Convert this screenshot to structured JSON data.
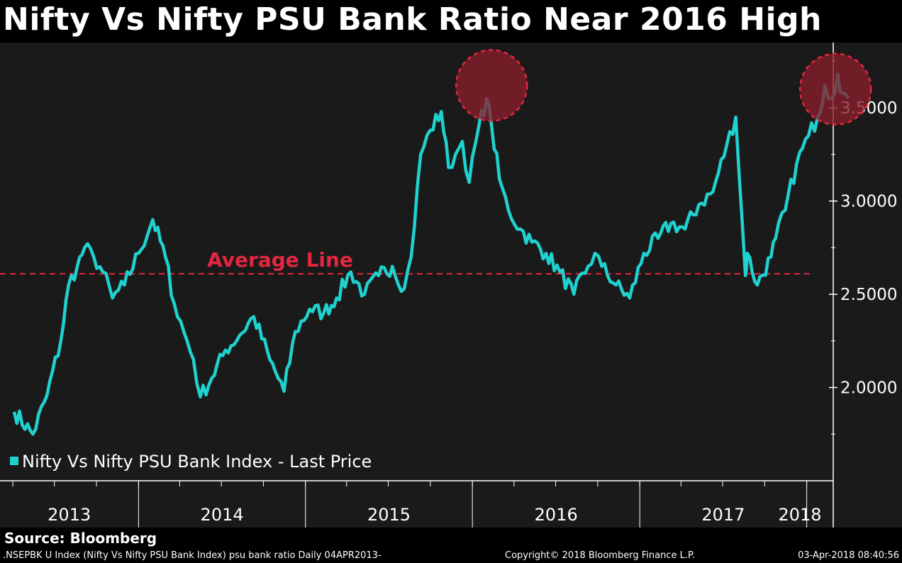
{
  "title": "Nifty Vs Nifty PSU Bank Ratio Near 2016 High",
  "source": "Source: Bloomberg",
  "footer": {
    "left": ".NSEPBK U Index (Nifty Vs Nifty PSU Bank Index) psu bank ratio  Daily 04APR2013-",
    "center": "Copyright© 2018 Bloomberg Finance L.P.",
    "right": "03-Apr-2018 08:40:56"
  },
  "colors": {
    "background": "#1a1a1a",
    "series": "#1fd1cf",
    "average_line": "#e4263f",
    "highlight_fill": "#8b1f2c",
    "highlight_stroke": "#e4263f",
    "axis": "#ffffff",
    "text": "#ffffff"
  },
  "chart_data": {
    "type": "line",
    "title": "Nifty Vs Nifty PSU Bank Ratio Near 2016 High",
    "xlabel": "",
    "ylabel": "",
    "x_ticks": [
      "2013",
      "2014",
      "2015",
      "2016",
      "2017",
      "2018"
    ],
    "y_ticks": [
      "2.0000",
      "2.5000",
      "3.0000",
      "3.5000"
    ],
    "ylim": [
      1.5,
      3.85
    ],
    "grid": false,
    "legend_position": "bottom-left",
    "series": [
      {
        "name": "Nifty Vs Nifty PSU Bank Index - Last Price",
        "x": [
          "2013-04-04",
          "2013-05-15",
          "2013-06-15",
          "2013-07-15",
          "2013-08-01",
          "2013-08-20",
          "2013-09-05",
          "2013-09-25",
          "2013-10-15",
          "2013-11-05",
          "2013-12-01",
          "2014-01-01",
          "2014-02-01",
          "2014-03-01",
          "2014-03-20",
          "2014-04-10",
          "2014-05-01",
          "2014-05-16",
          "2014-06-10",
          "2014-07-10",
          "2014-08-10",
          "2014-09-10",
          "2014-10-15",
          "2014-11-15",
          "2014-12-10",
          "2015-01-10",
          "2015-02-10",
          "2015-03-10",
          "2015-04-10",
          "2015-05-10",
          "2015-06-10",
          "2015-07-10",
          "2015-08-05",
          "2015-08-20",
          "2015-09-10",
          "2015-10-01",
          "2015-10-25",
          "2015-11-10",
          "2015-11-25",
          "2015-12-10",
          "2015-12-25",
          "2016-01-15",
          "2016-02-01",
          "2016-02-12",
          "2016-02-29",
          "2016-03-20",
          "2016-04-15",
          "2016-05-10",
          "2016-06-10",
          "2016-07-10",
          "2016-08-10",
          "2016-09-10",
          "2016-09-25",
          "2016-10-10",
          "2016-11-10",
          "2016-12-10",
          "2017-01-10",
          "2017-02-10",
          "2017-03-10",
          "2017-04-10",
          "2017-05-10",
          "2017-06-10",
          "2017-07-10",
          "2017-07-30",
          "2017-08-20",
          "2017-08-24",
          "2017-09-15",
          "2017-10-15",
          "2017-10-25",
          "2017-11-15",
          "2017-12-10",
          "2018-01-05",
          "2018-01-25",
          "2018-02-10",
          "2018-02-25",
          "2018-03-10",
          "2018-03-20",
          "2018-04-03"
        ],
        "y": [
          1.87,
          1.75,
          1.96,
          2.25,
          2.55,
          2.65,
          2.75,
          2.7,
          2.62,
          2.48,
          2.55,
          2.72,
          2.9,
          2.7,
          2.45,
          2.3,
          2.15,
          1.95,
          2.05,
          2.2,
          2.28,
          2.38,
          2.15,
          1.98,
          2.3,
          2.42,
          2.4,
          2.48,
          2.62,
          2.5,
          2.6,
          2.65,
          2.53,
          2.7,
          3.25,
          3.38,
          3.48,
          3.18,
          3.25,
          3.32,
          3.1,
          3.4,
          3.55,
          3.4,
          3.12,
          2.95,
          2.85,
          2.78,
          2.72,
          2.62,
          2.5,
          2.65,
          2.72,
          2.65,
          2.55,
          2.48,
          2.72,
          2.8,
          2.88,
          2.85,
          2.98,
          3.05,
          3.3,
          3.45,
          2.6,
          2.72,
          2.55,
          2.7,
          2.8,
          2.95,
          3.2,
          3.35,
          3.45,
          3.62,
          3.55,
          3.68,
          3.58,
          3.55
        ]
      }
    ],
    "reference_line": {
      "label": "Average Line",
      "value": 2.61
    },
    "highlights": [
      {
        "center": [
          "2016-02-12",
          3.62
        ]
      },
      {
        "center": [
          "2018-03-05",
          3.6
        ]
      }
    ]
  }
}
